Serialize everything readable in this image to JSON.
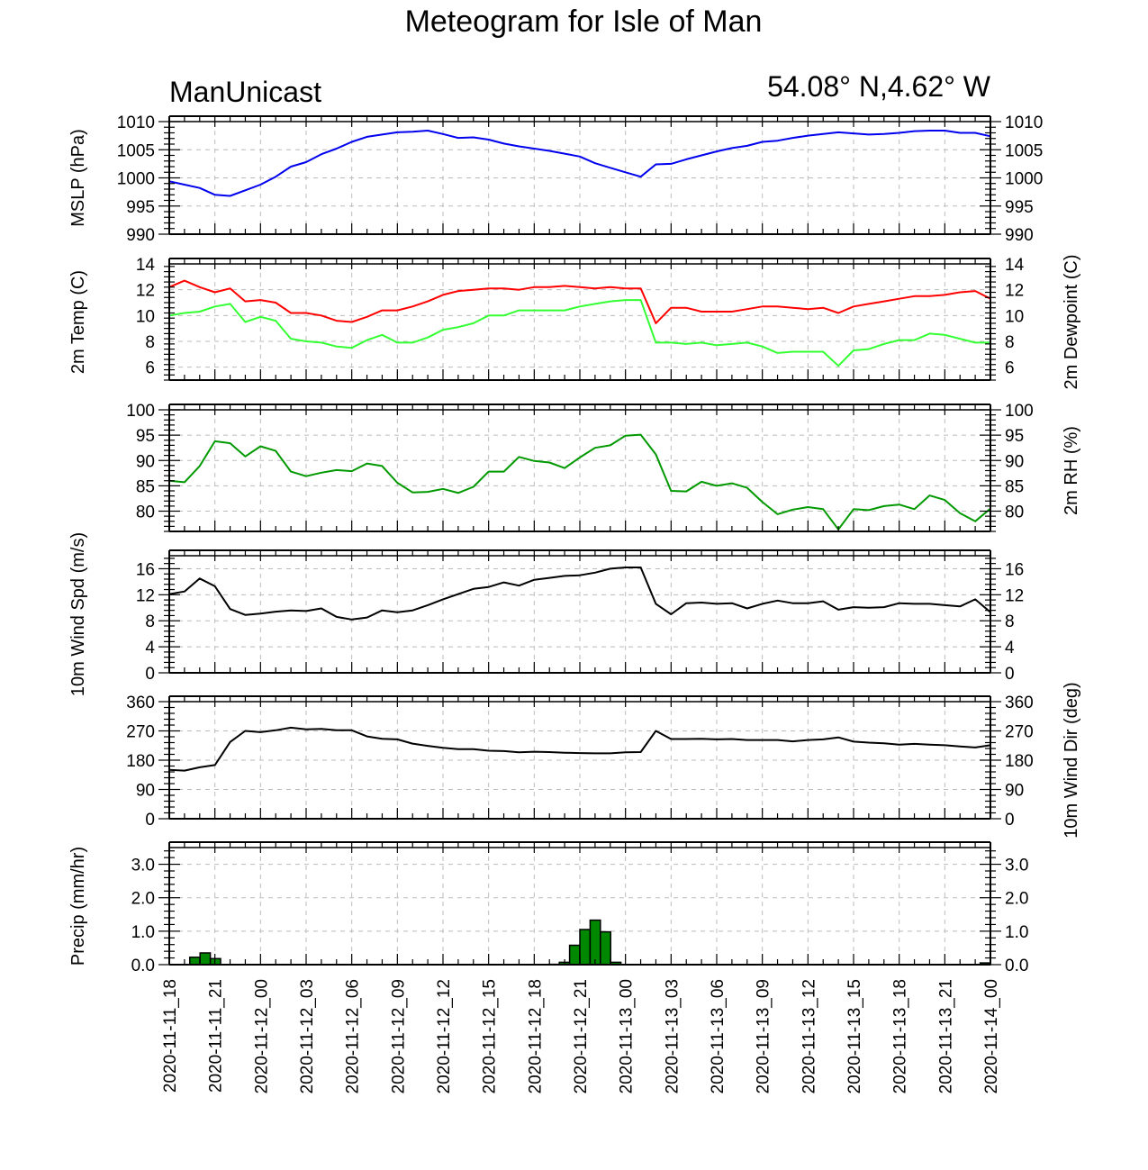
{
  "title": "Meteogram for Isle of Man",
  "subtitle_left": "ManUnicast",
  "subtitle_right": "54.08° N,4.62° W",
  "chart_data": [
    {
      "type": "line",
      "ylabel": "MSLP (hPa)",
      "ylabel_right": "",
      "ylim": [
        990,
        1010
      ],
      "yticks": [
        "990",
        "995",
        "1000",
        "1005",
        "1010"
      ],
      "grid": true,
      "series": [
        {
          "color": "#0000ee",
          "values": [
            999.4,
            998.8,
            998.2,
            997.0,
            996.8,
            997.8,
            998.8,
            1000.2,
            1002.0,
            1002.8,
            1004.2,
            1005.2,
            1006.4,
            1007.3,
            1007.7,
            1008.1,
            1008.2,
            1008.4,
            1007.8,
            1007.1,
            1007.2,
            1006.8,
            1006.1,
            1005.6,
            1005.2,
            1004.8,
            1004.3,
            1003.8,
            1002.6,
            1001.8,
            1001.0,
            1000.2,
            1002.4,
            1002.5,
            1003.3,
            1004.0,
            1004.7,
            1005.3,
            1005.7,
            1006.4,
            1006.6,
            1007.1,
            1007.5,
            1007.8,
            1008.1,
            1007.9,
            1007.7,
            1007.8,
            1008.0,
            1008.3,
            1008.4,
            1008.4,
            1008.0,
            1008.0,
            1007.4
          ]
        }
      ]
    },
    {
      "type": "line",
      "ylabel": "2m Temp (C)",
      "ylabel_right": "2m Dewpoint (C)",
      "ylim": [
        5,
        14
      ],
      "yticks": [
        "6",
        "8",
        "10",
        "12",
        "14"
      ],
      "grid": true,
      "series": [
        {
          "color": "#ff0000",
          "values": [
            12.2,
            12.7,
            12.2,
            11.8,
            12.1,
            11.1,
            11.2,
            11.0,
            10.2,
            10.2,
            10.0,
            9.6,
            9.5,
            9.9,
            10.4,
            10.4,
            10.7,
            11.1,
            11.6,
            11.9,
            12.0,
            12.1,
            12.1,
            12.0,
            12.2,
            12.2,
            12.3,
            12.2,
            12.1,
            12.2,
            12.1,
            12.1,
            9.4,
            10.6,
            10.6,
            10.3,
            10.3,
            10.3,
            10.5,
            10.7,
            10.7,
            10.6,
            10.5,
            10.6,
            10.2,
            10.7,
            10.9,
            11.1,
            11.3,
            11.5,
            11.5,
            11.6,
            11.8,
            11.9,
            11.3
          ]
        },
        {
          "color": "#33ff33",
          "values": [
            10.0,
            10.2,
            10.3,
            10.7,
            10.9,
            9.5,
            9.9,
            9.6,
            8.2,
            8.0,
            7.9,
            7.6,
            7.5,
            8.1,
            8.5,
            7.9,
            7.9,
            8.3,
            8.9,
            9.1,
            9.4,
            10.0,
            10.0,
            10.4,
            10.4,
            10.4,
            10.4,
            10.7,
            10.9,
            11.1,
            11.2,
            11.2,
            7.9,
            7.9,
            7.8,
            7.9,
            7.7,
            7.8,
            7.9,
            7.6,
            7.1,
            7.2,
            7.2,
            7.2,
            6.1,
            7.3,
            7.4,
            7.8,
            8.1,
            8.1,
            8.6,
            8.5,
            8.2,
            7.9,
            7.9
          ]
        }
      ]
    },
    {
      "type": "line",
      "ylabel": "",
      "ylabel_right": "2m RH (%)",
      "ylim": [
        76,
        100
      ],
      "yticks": [
        "80",
        "85",
        "90",
        "95",
        "100"
      ],
      "grid": true,
      "series": [
        {
          "color": "#009900",
          "values": [
            86.0,
            85.7,
            88.9,
            93.8,
            93.4,
            90.8,
            92.8,
            91.9,
            87.8,
            86.9,
            87.6,
            88.1,
            87.9,
            89.4,
            88.9,
            85.6,
            83.7,
            83.8,
            84.4,
            83.6,
            84.8,
            87.8,
            87.8,
            90.7,
            89.9,
            89.6,
            88.5,
            90.6,
            92.5,
            93.0,
            94.9,
            95.1,
            91.2,
            84.0,
            83.9,
            85.8,
            85.0,
            85.5,
            84.6,
            81.8,
            79.4,
            80.3,
            80.8,
            80.4,
            76.4,
            80.4,
            80.2,
            81.0,
            81.3,
            80.4,
            83.1,
            82.2,
            79.6,
            78.0,
            80.5
          ]
        }
      ]
    },
    {
      "type": "line",
      "ylabel": "10m Wind Spd (m/s)",
      "ylabel_right": "",
      "ylim": [
        0,
        18
      ],
      "yticks": [
        "0",
        "4",
        "8",
        "12",
        "16"
      ],
      "grid": true,
      "series": [
        {
          "color": "#000000",
          "values": [
            12.1,
            12.5,
            14.5,
            13.3,
            9.8,
            8.9,
            9.1,
            9.4,
            9.6,
            9.5,
            9.9,
            8.6,
            8.2,
            8.5,
            9.6,
            9.3,
            9.6,
            10.4,
            11.3,
            12.1,
            12.9,
            13.2,
            13.9,
            13.4,
            14.3,
            14.6,
            14.9,
            15.0,
            15.4,
            16.0,
            16.2,
            16.2,
            10.6,
            9.0,
            10.7,
            10.8,
            10.6,
            10.7,
            9.9,
            10.6,
            11.1,
            10.7,
            10.7,
            11.0,
            9.7,
            10.1,
            10.0,
            10.1,
            10.7,
            10.6,
            10.6,
            10.4,
            10.2,
            11.3,
            9.3
          ]
        }
      ]
    },
    {
      "type": "line",
      "ylabel": "",
      "ylabel_right": "10m Wind Dir (deg)",
      "ylim": [
        0,
        360
      ],
      "yticks": [
        "0",
        "90",
        "180",
        "270",
        "360"
      ],
      "grid": true,
      "series": [
        {
          "color": "#000000",
          "values": [
            150,
            148,
            158,
            165,
            236,
            270,
            266,
            272,
            280,
            275,
            276,
            272,
            272,
            253,
            246,
            244,
            231,
            224,
            218,
            214,
            214,
            209,
            208,
            204,
            206,
            205,
            203,
            202,
            201,
            201,
            204,
            205,
            270,
            245,
            245,
            246,
            244,
            245,
            242,
            242,
            242,
            238,
            242,
            244,
            250,
            237,
            234,
            232,
            228,
            230,
            228,
            226,
            222,
            219,
            226
          ]
        }
      ]
    },
    {
      "type": "bar",
      "ylabel": "Precip (mm/hr)",
      "ylabel_right": "",
      "ylim": [
        0,
        3.5
      ],
      "yticks": [
        "0.0",
        "1.0",
        "2.0",
        "3.0"
      ],
      "grid": true,
      "color": "#008800",
      "values": [
        0,
        0,
        0.22,
        0.35,
        0.18,
        0,
        0,
        0,
        0,
        0,
        0,
        0,
        0,
        0,
        0,
        0,
        0,
        0,
        0,
        0,
        0,
        0,
        0,
        0,
        0,
        0,
        0,
        0,
        0,
        0,
        0,
        0,
        0,
        0,
        0,
        0,
        0,
        0.01,
        0.07,
        0.58,
        1.05,
        1.33,
        0.98,
        0.07,
        0,
        0,
        0,
        0,
        0,
        0,
        0,
        0,
        0,
        0,
        0,
        0,
        0,
        0,
        0,
        0,
        0,
        0,
        0,
        0,
        0,
        0,
        0,
        0,
        0,
        0,
        0,
        0,
        0,
        0,
        0,
        0,
        0,
        0,
        0,
        0.05
      ]
    }
  ],
  "x_tick_labels": [
    "2020-11-11_18",
    "2020-11-11_21",
    "2020-11-12_00",
    "2020-11-12_03",
    "2020-11-12_06",
    "2020-11-12_09",
    "2020-11-12_12",
    "2020-11-12_15",
    "2020-11-12_18",
    "2020-11-12_21",
    "2020-11-13_00",
    "2020-11-13_03",
    "2020-11-13_06",
    "2020-11-13_09",
    "2020-11-13_12",
    "2020-11-13_15",
    "2020-11-13_18",
    "2020-11-13_21",
    "2020-11-14_00"
  ]
}
